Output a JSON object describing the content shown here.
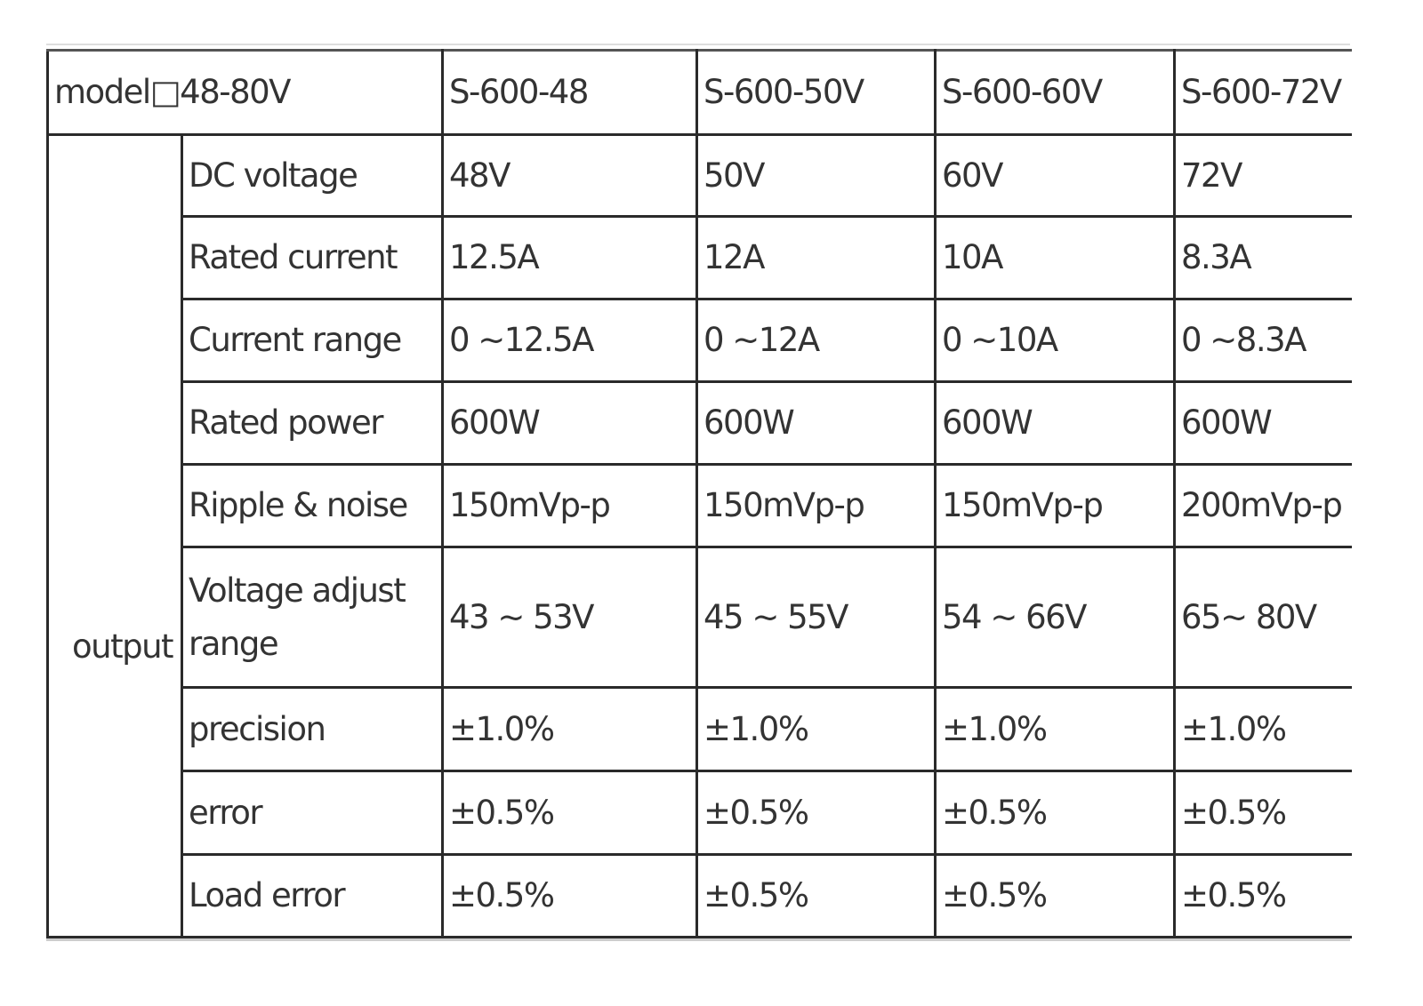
{
  "table": {
    "header": [
      "model□48-80V",
      "S-600-48",
      "S-600-50V",
      "S-600-60V",
      "S-600-72V"
    ],
    "group_label": "output",
    "rows": [
      [
        "DC voltage",
        "48V",
        "50V",
        "60V",
        "72V"
      ],
      [
        "Rated current",
        "12.5A",
        "12A",
        "10A",
        "8.3A"
      ],
      [
        "Current range",
        "0 ~12.5A",
        "0 ~12A",
        "0 ~10A",
        "0 ~8.3A"
      ],
      [
        "Rated power",
        "600W",
        "600W",
        "600W",
        "600W"
      ],
      [
        "Ripple & noise",
        "150mVp-p",
        "150mVp-p",
        "150mVp-p",
        "200mVp-p"
      ],
      [
        "Voltage adjust range",
        "43 ~ 53V",
        "45 ~ 55V",
        "54 ~ 66V",
        "65~ 80V"
      ],
      [
        "precision",
        "±1.0%",
        "±1.0%",
        "±1.0%",
        "±1.0%"
      ],
      [
        "error",
        "±0.5%",
        "±0.5%",
        "±0.5%",
        "±0.5%"
      ],
      [
        "Load error",
        "±0.5%",
        "±0.5%",
        "±0.5%",
        "±0.5%"
      ]
    ]
  }
}
